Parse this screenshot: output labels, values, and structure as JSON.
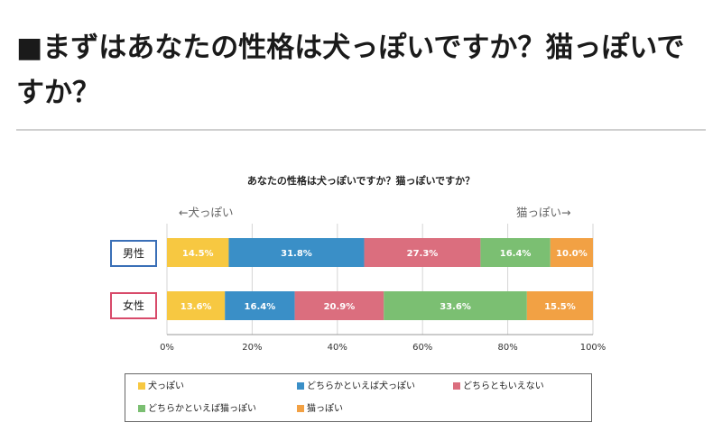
{
  "heading": "■まずはあなたの性格は犬っぽいですか？猫っぽいですか？",
  "chart_data": {
    "type": "bar",
    "orientation": "horizontal",
    "stacked": true,
    "title": "あなたの性格は犬っぽいですか？猫っぽいですか？",
    "direction_left": "←犬っぽい",
    "direction_right": "猫っぽい→",
    "categories": [
      "男性",
      "女性"
    ],
    "series": [
      {
        "name": "犬っぽい",
        "color": "#f7c841",
        "values": [
          14.5,
          13.6
        ],
        "labels": [
          "14.5%",
          "13.6%"
        ]
      },
      {
        "name": "どちらかといえば犬っぽい",
        "color": "#3a8fc7",
        "values": [
          31.8,
          16.4
        ],
        "labels": [
          "31.8%",
          "16.4%"
        ]
      },
      {
        "name": "どちらともいえない",
        "color": "#db6e7e",
        "values": [
          27.3,
          20.9
        ],
        "labels": [
          "27.3%",
          "20.9%"
        ]
      },
      {
        "name": "どちらかといえば猫っぽい",
        "color": "#7bbf72",
        "values": [
          16.4,
          33.6
        ],
        "labels": [
          "16.4%",
          "33.6%"
        ]
      },
      {
        "name": "猫っぽい",
        "color": "#f2a144",
        "values": [
          10.0,
          15.5
        ],
        "labels": [
          "10.0%",
          "15.5%"
        ]
      }
    ],
    "category_box_colors": [
      "#3a6fb7",
      "#d84a6a"
    ],
    "xlim": [
      0,
      100
    ],
    "xticks": [
      "0%",
      "20%",
      "40%",
      "60%",
      "80%",
      "100%"
    ],
    "grid": true,
    "legend_position": "bottom"
  }
}
